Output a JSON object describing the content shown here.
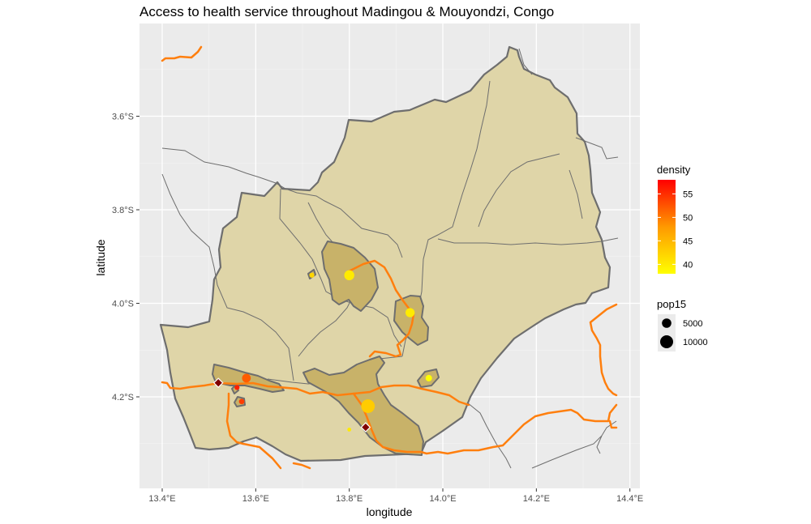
{
  "chart_data": {
    "type": "map",
    "title": "Access to health service throughout Madingou & Mouyondzi, Congo",
    "xlabel": "longitude",
    "ylabel": "latitude",
    "x_ticks": [
      {
        "value": 13.4,
        "label": "13.4°E"
      },
      {
        "value": 13.6,
        "label": "13.6°E"
      },
      {
        "value": 13.8,
        "label": "13.8°E"
      },
      {
        "value": 14.0,
        "label": "14.0°E"
      },
      {
        "value": 14.2,
        "label": "14.2°E"
      },
      {
        "value": 14.4,
        "label": "14.4°E"
      }
    ],
    "y_ticks": [
      {
        "value": -3.6,
        "label": "3.6°S"
      },
      {
        "value": -3.8,
        "label": "3.8°S"
      },
      {
        "value": -4.0,
        "label": "4.0°S"
      },
      {
        "value": -4.2,
        "label": "4.2°S"
      }
    ],
    "xlim": [
      13.37,
      14.42
    ],
    "ylim": [
      -4.39,
      -3.43
    ],
    "grid": true,
    "legend_position": "right",
    "legends": {
      "density": {
        "title": "density",
        "labels": [
          "55",
          "50",
          "45",
          "40"
        ],
        "values": [
          55,
          50,
          45,
          40
        ],
        "range": [
          38,
          58
        ],
        "colors": {
          "low": "#ffff00",
          "mid": "#ff9900",
          "high": "#ff0000"
        }
      },
      "pop15": {
        "title": "pop15",
        "labels": [
          "5000",
          "10000"
        ],
        "values": [
          5000,
          10000
        ]
      }
    },
    "colors": {
      "panel_background": "#ebebeb",
      "district_fill": "#dfd5a8",
      "district_outline": "#6e6e6e",
      "dense_area_fill": "#c8b269",
      "road": "#ff8000",
      "river": "#6e6e6e",
      "health_facility": "#7f0000"
    },
    "health_facility_icon": "diamond-icon",
    "settlements": [
      {
        "lon": 13.8,
        "lat": -3.94,
        "pop15": 6000,
        "density": 40
      },
      {
        "lon": 13.93,
        "lat": -4.02,
        "pop15": 5000,
        "density": 40
      },
      {
        "lon": 13.84,
        "lat": -4.22,
        "pop15": 11000,
        "density": 43
      },
      {
        "lon": 13.58,
        "lat": -4.16,
        "pop15": 4500,
        "density": 52
      },
      {
        "lon": 13.97,
        "lat": -4.16,
        "pop15": 2500,
        "density": 38
      },
      {
        "lon": 13.72,
        "lat": -3.94,
        "pop15": 1500,
        "density": 42
      },
      {
        "lon": 13.56,
        "lat": -4.18,
        "pop15": 1500,
        "density": 56
      },
      {
        "lon": 13.57,
        "lat": -4.21,
        "pop15": 1800,
        "density": 54
      },
      {
        "lon": 13.8,
        "lat": -4.27,
        "pop15": 600,
        "density": 40
      }
    ],
    "health_facilities": [
      {
        "lon": 13.52,
        "lat": -4.17
      },
      {
        "lon": 13.835,
        "lat": -4.265
      }
    ]
  }
}
